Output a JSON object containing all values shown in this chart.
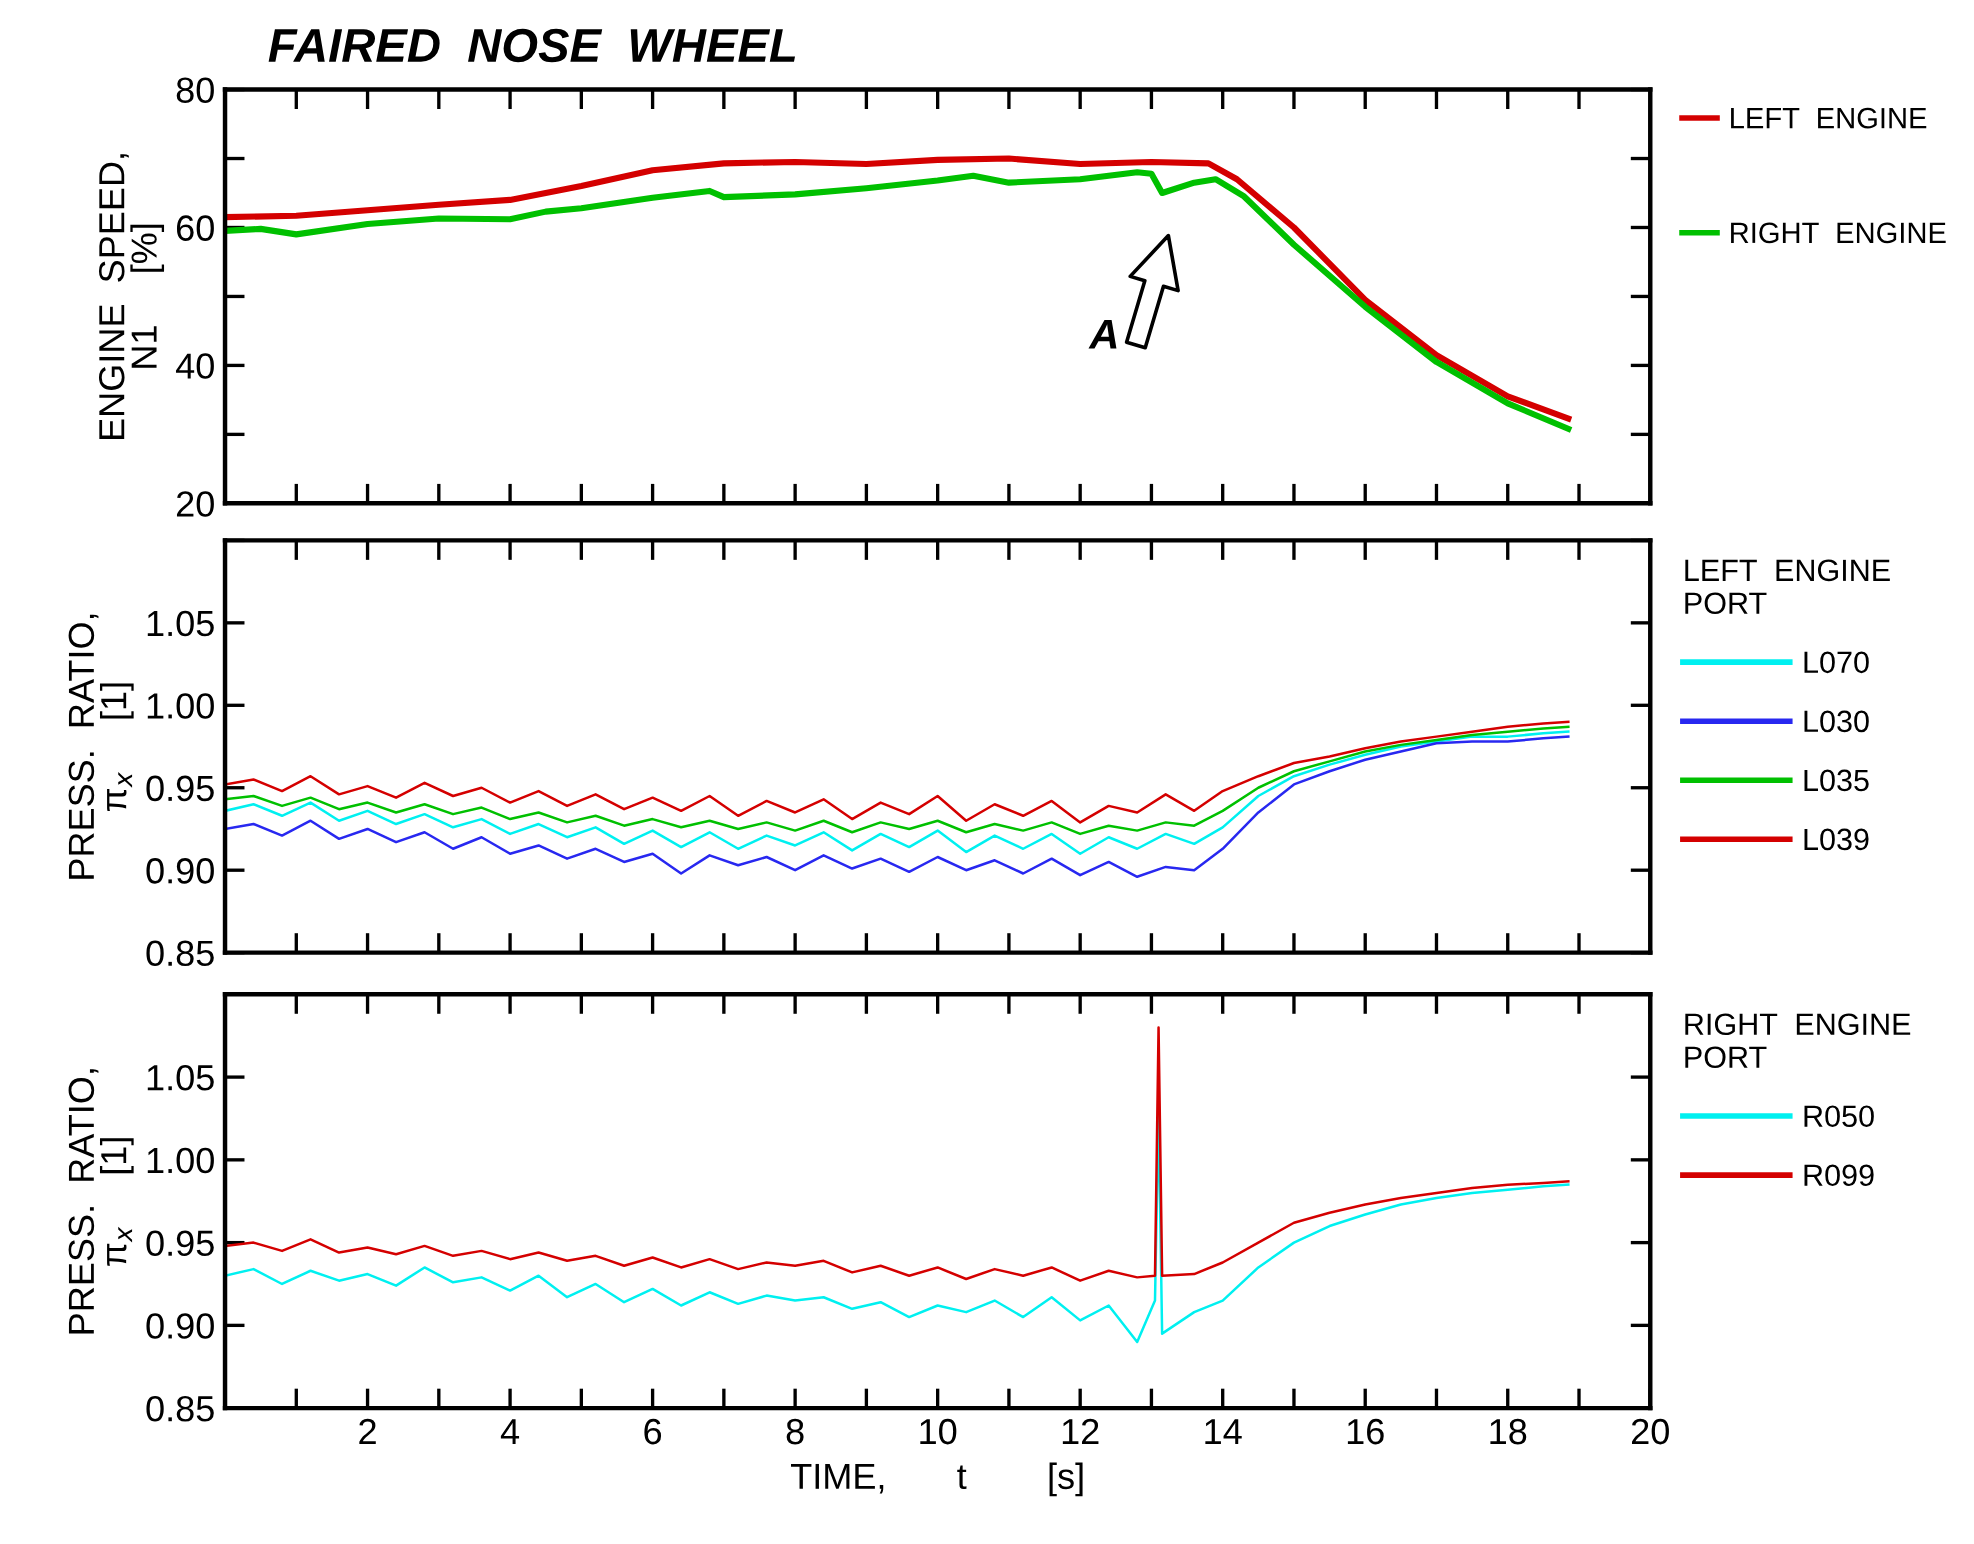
{
  "chart_data": [
    {
      "type": "line",
      "title": "FAIRED  NOSE  WHEEL",
      "ylabel": "ENGINE  SPEED,\nN1     [%]",
      "xlim": [
        0,
        20
      ],
      "xticks": [
        {
          "value": 1,
          "label": null
        },
        {
          "value": 2,
          "label": null
        },
        {
          "value": 3,
          "label": null
        },
        {
          "value": 4,
          "label": null
        },
        {
          "value": 5,
          "label": null
        },
        {
          "value": 6,
          "label": null
        },
        {
          "value": 7,
          "label": null
        },
        {
          "value": 8,
          "label": null
        },
        {
          "value": 9,
          "label": null
        },
        {
          "value": 10,
          "label": null
        },
        {
          "value": 11,
          "label": null
        },
        {
          "value": 12,
          "label": null
        },
        {
          "value": 13,
          "label": null
        },
        {
          "value": 14,
          "label": null
        },
        {
          "value": 15,
          "label": null
        },
        {
          "value": 16,
          "label": null
        },
        {
          "value": 17,
          "label": null
        },
        {
          "value": 18,
          "label": null
        },
        {
          "value": 19,
          "label": null
        }
      ],
      "ylim": [
        20,
        80
      ],
      "yticks": [
        20,
        {
          "value": 30,
          "label": null
        },
        40,
        {
          "value": 50,
          "label": null
        },
        60,
        {
          "value": 70,
          "label": null
        },
        80
      ],
      "tick_labels": "y",
      "legend": "right",
      "grid": false,
      "annotations": [
        "A"
      ],
      "series": [
        {
          "name": "LEFT  ENGINE",
          "color": "#d40000",
          "x": [
            0,
            1,
            2,
            3,
            4,
            5,
            6,
            7,
            8,
            9,
            10,
            11,
            12,
            13,
            13.8,
            14.2,
            15,
            16,
            17,
            18,
            18.85
          ],
          "values": [
            61.5,
            61.7,
            62.5,
            63.3,
            64,
            66,
            68.3,
            69.3,
            69.5,
            69.2,
            69.8,
            70,
            69.2,
            69.5,
            69.3,
            67,
            60,
            49.5,
            41.5,
            35.5,
            32.3
          ]
        },
        {
          "name": "RIGHT  ENGINE",
          "color": "#00c000",
          "x": [
            0,
            0.5,
            1,
            2,
            3,
            4,
            4.5,
            5,
            6,
            6.8,
            7,
            8,
            9,
            10,
            10.5,
            11,
            12,
            12.8,
            13.0,
            13.15,
            13.6,
            13.9,
            14.3,
            15,
            16,
            17,
            18,
            18.85
          ],
          "values": [
            59.5,
            59.8,
            59,
            60.5,
            61.3,
            61.2,
            62.3,
            62.8,
            64.3,
            65.3,
            64.4,
            64.8,
            65.7,
            66.8,
            67.5,
            66.5,
            67,
            68,
            67.8,
            65,
            66.5,
            67,
            64.5,
            57.5,
            48.5,
            40.5,
            34.5,
            30.8
          ]
        }
      ]
    },
    {
      "type": "line",
      "ylabel": "PRESS.  RATIO,\nπ$_{x}$     [1]",
      "xlim": [
        0,
        20
      ],
      "xticks": [
        {
          "value": 1,
          "label": null
        },
        {
          "value": 2,
          "label": null
        },
        {
          "value": 3,
          "label": null
        },
        {
          "value": 4,
          "label": null
        },
        {
          "value": 5,
          "label": null
        },
        {
          "value": 6,
          "label": null
        },
        {
          "value": 7,
          "label": null
        },
        {
          "value": 8,
          "label": null
        },
        {
          "value": 9,
          "label": null
        },
        {
          "value": 10,
          "label": null
        },
        {
          "value": 11,
          "label": null
        },
        {
          "value": 12,
          "label": null
        },
        {
          "value": 13,
          "label": null
        },
        {
          "value": 14,
          "label": null
        },
        {
          "value": 15,
          "label": null
        },
        {
          "value": 16,
          "label": null
        },
        {
          "value": 17,
          "label": null
        },
        {
          "value": 18,
          "label": null
        },
        {
          "value": 19,
          "label": null
        }
      ],
      "ylim": [
        0.85,
        1.1
      ],
      "yticks": [
        {
          "value": 0.85,
          "label": "0.85"
        },
        {
          "value": 0.9,
          "label": "0.90"
        },
        {
          "value": 0.95,
          "label": "0.95"
        },
        {
          "value": 1.0,
          "label": "1.00"
        },
        {
          "value": 1.05,
          "label": "1.05"
        },
        {
          "value": 1.1,
          "label": null
        }
      ],
      "tick_labels": "y",
      "legend": "right",
      "legend_title": "LEFT  ENGINE\nPORT",
      "grid": false,
      "x": [
        0,
        0.4,
        0.8,
        1.2,
        1.6,
        2,
        2.4,
        2.8,
        3.2,
        3.6,
        4,
        4.4,
        4.8,
        5.2,
        5.6,
        6,
        6.4,
        6.8,
        7.2,
        7.6,
        8,
        8.4,
        8.8,
        9.2,
        9.6,
        10,
        10.4,
        10.8,
        11.2,
        11.6,
        12,
        12.4,
        12.8,
        13.2,
        13.6,
        14,
        14.5,
        15,
        15.5,
        16,
        16.5,
        17,
        17.5,
        18,
        18.5,
        18.85
      ],
      "series": [
        {
          "name": "L070",
          "color": "#00f0f0",
          "values": [
            0.936,
            0.94,
            0.933,
            0.941,
            0.93,
            0.936,
            0.928,
            0.934,
            0.926,
            0.931,
            0.922,
            0.928,
            0.92,
            0.926,
            0.916,
            0.924,
            0.914,
            0.923,
            0.913,
            0.921,
            0.915,
            0.923,
            0.912,
            0.922,
            0.914,
            0.924,
            0.911,
            0.921,
            0.913,
            0.922,
            0.91,
            0.92,
            0.913,
            0.922,
            0.916,
            0.926,
            0.945,
            0.957,
            0.964,
            0.97,
            0.975,
            0.978,
            0.981,
            0.981,
            0.983,
            0.984
          ]
        },
        {
          "name": "L030",
          "color": "#2828f0",
          "values": [
            0.925,
            0.928,
            0.921,
            0.93,
            0.919,
            0.925,
            0.917,
            0.923,
            0.913,
            0.92,
            0.91,
            0.915,
            0.907,
            0.913,
            0.905,
            0.91,
            0.898,
            0.909,
            0.903,
            0.908,
            0.9,
            0.909,
            0.901,
            0.907,
            0.899,
            0.908,
            0.9,
            0.906,
            0.898,
            0.907,
            0.897,
            0.905,
            0.896,
            0.902,
            0.9,
            0.913,
            0.935,
            0.952,
            0.96,
            0.967,
            0.972,
            0.977,
            0.978,
            0.978,
            0.98,
            0.981
          ]
        },
        {
          "name": "L035",
          "color": "#00c000",
          "values": [
            0.943,
            0.945,
            0.939,
            0.944,
            0.937,
            0.941,
            0.935,
            0.94,
            0.934,
            0.938,
            0.931,
            0.935,
            0.929,
            0.933,
            0.927,
            0.931,
            0.926,
            0.93,
            0.925,
            0.929,
            0.924,
            0.93,
            0.923,
            0.929,
            0.925,
            0.93,
            0.923,
            0.928,
            0.924,
            0.929,
            0.922,
            0.927,
            0.924,
            0.929,
            0.927,
            0.936,
            0.95,
            0.96,
            0.966,
            0.972,
            0.976,
            0.979,
            0.982,
            0.984,
            0.986,
            0.987
          ]
        },
        {
          "name": "L039",
          "color": "#d40000",
          "values": [
            0.952,
            0.955,
            0.948,
            0.957,
            0.946,
            0.951,
            0.944,
            0.953,
            0.945,
            0.95,
            0.941,
            0.948,
            0.939,
            0.946,
            0.937,
            0.944,
            0.936,
            0.945,
            0.933,
            0.942,
            0.935,
            0.943,
            0.931,
            0.941,
            0.934,
            0.945,
            0.93,
            0.94,
            0.933,
            0.942,
            0.929,
            0.939,
            0.935,
            0.946,
            0.936,
            0.948,
            0.957,
            0.965,
            0.969,
            0.974,
            0.978,
            0.981,
            0.984,
            0.987,
            0.989,
            0.99
          ]
        }
      ]
    },
    {
      "type": "line",
      "ylabel": "PRESS.  RATIO,\nπ$_{x}$     [1]",
      "xlabel": "TIME,       t        [s]",
      "xlim": [
        0,
        20
      ],
      "xticks": [
        {
          "value": 1,
          "label": null
        },
        2,
        {
          "value": 3,
          "label": null
        },
        4,
        {
          "value": 5,
          "label": null
        },
        6,
        {
          "value": 7,
          "label": null
        },
        8,
        {
          "value": 9,
          "label": null
        },
        10,
        {
          "value": 11,
          "label": null
        },
        12,
        {
          "value": 13,
          "label": null
        },
        14,
        {
          "value": 15,
          "label": null
        },
        16,
        {
          "value": 17,
          "label": null
        },
        18,
        {
          "value": 19,
          "label": null
        },
        20
      ],
      "ylim": [
        0.85,
        1.1
      ],
      "yticks": [
        {
          "value": 0.85,
          "label": "0.85"
        },
        {
          "value": 0.9,
          "label": "0.90"
        },
        {
          "value": 0.95,
          "label": "0.95"
        },
        {
          "value": 1.0,
          "label": "1.00"
        },
        {
          "value": 1.05,
          "label": "1.05"
        },
        {
          "value": 1.1,
          "label": null
        }
      ],
      "legend": "right",
      "legend_title": "RIGHT  ENGINE\nPORT",
      "grid": false,
      "x": [
        0,
        0.4,
        0.8,
        1.2,
        1.6,
        2,
        2.4,
        2.8,
        3.2,
        3.6,
        4,
        4.4,
        4.8,
        5.2,
        5.6,
        6,
        6.4,
        6.8,
        7.2,
        7.6,
        8,
        8.4,
        8.8,
        9.2,
        9.6,
        10,
        10.4,
        10.8,
        11.2,
        11.6,
        12,
        12.4,
        12.8,
        13.05,
        13.1,
        13.15,
        13.6,
        14,
        14.5,
        15,
        15.5,
        16,
        16.5,
        17,
        17.5,
        18,
        18.5,
        18.85
      ],
      "series": [
        {
          "name": "R050",
          "color": "#00f0f0",
          "values": [
            0.93,
            0.934,
            0.925,
            0.933,
            0.927,
            0.931,
            0.924,
            0.935,
            0.926,
            0.929,
            0.921,
            0.93,
            0.917,
            0.925,
            0.914,
            0.922,
            0.912,
            0.92,
            0.913,
            0.918,
            0.915,
            0.917,
            0.91,
            0.914,
            0.905,
            0.912,
            0.908,
            0.915,
            0.905,
            0.917,
            0.903,
            0.912,
            0.89,
            0.915,
            1.031,
            0.895,
            0.908,
            0.915,
            0.935,
            0.95,
            0.96,
            0.967,
            0.973,
            0.977,
            0.98,
            0.982,
            0.984,
            0.985
          ]
        },
        {
          "name": "R099",
          "color": "#d40000",
          "values": [
            0.948,
            0.95,
            0.945,
            0.952,
            0.944,
            0.947,
            0.943,
            0.948,
            0.942,
            0.945,
            0.94,
            0.944,
            0.939,
            0.942,
            0.936,
            0.941,
            0.935,
            0.94,
            0.934,
            0.938,
            0.936,
            0.939,
            0.932,
            0.936,
            0.93,
            0.935,
            0.928,
            0.934,
            0.93,
            0.935,
            0.927,
            0.933,
            0.929,
            0.93,
            1.08,
            0.93,
            0.931,
            0.938,
            0.95,
            0.962,
            0.968,
            0.973,
            0.977,
            0.98,
            0.983,
            0.985,
            0.986,
            0.987
          ]
        }
      ]
    }
  ]
}
